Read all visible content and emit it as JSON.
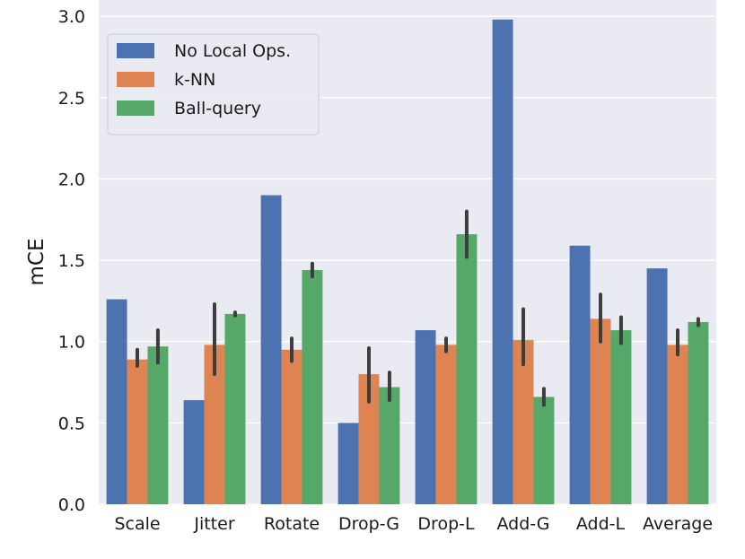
{
  "chart_data": {
    "type": "bar",
    "title": "",
    "xlabel": "",
    "ylabel": "mCE",
    "ylim": [
      0,
      3.1
    ],
    "yticks": [
      "0.0",
      "0.5",
      "1.0",
      "1.5",
      "2.0",
      "2.5",
      "3.0"
    ],
    "grid": true,
    "legend_position": "top-left",
    "categories": [
      "Scale",
      "Jitter",
      "Rotate",
      "Drop-G",
      "Drop-L",
      "Add-G",
      "Add-L",
      "Average"
    ],
    "series": [
      {
        "name": "No Local Ops.",
        "color": "#4c72b0",
        "values": [
          1.26,
          0.64,
          1.9,
          0.5,
          1.07,
          2.98,
          1.59,
          1.45
        ],
        "error": [
          null,
          null,
          null,
          null,
          null,
          null,
          null,
          null
        ]
      },
      {
        "name": "k-NN",
        "color": "#dd8452",
        "values": [
          0.89,
          0.98,
          0.95,
          0.8,
          0.98,
          1.01,
          1.14,
          0.98
        ],
        "error": [
          [
            0.85,
            0.95
          ],
          [
            0.8,
            1.23
          ],
          [
            0.88,
            1.02
          ],
          [
            0.63,
            0.96
          ],
          [
            0.94,
            1.02
          ],
          [
            0.86,
            1.2
          ],
          [
            1.0,
            1.29
          ],
          [
            0.92,
            1.07
          ]
        ]
      },
      {
        "name": "Ball-query",
        "color": "#55a868",
        "values": [
          0.97,
          1.17,
          1.44,
          0.72,
          1.66,
          0.66,
          1.07,
          1.12
        ],
        "error": [
          [
            0.87,
            1.07
          ],
          [
            1.16,
            1.18
          ],
          [
            1.4,
            1.48
          ],
          [
            0.64,
            0.81
          ],
          [
            1.52,
            1.8
          ],
          [
            0.61,
            0.71
          ],
          [
            0.99,
            1.15
          ],
          [
            1.1,
            1.14
          ]
        ]
      }
    ]
  }
}
